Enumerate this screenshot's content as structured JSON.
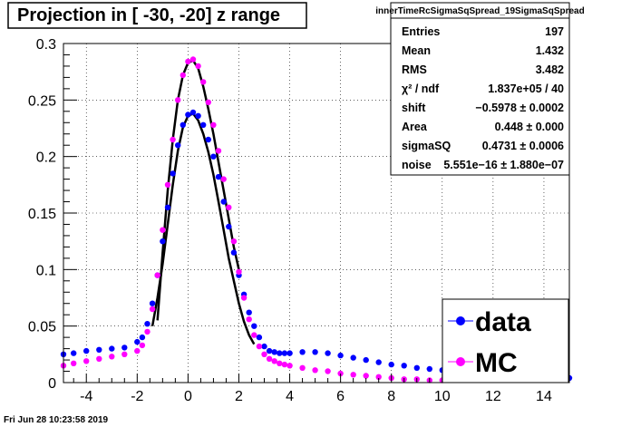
{
  "title": "Projection in [ -30, -20] z range",
  "timestamp": "Fri Jun 28 10:23:58 2019",
  "stats": {
    "name": "innerTimeRcSigmaSqSpread_19SigmaSqSpread",
    "rows": [
      {
        "label": "Entries",
        "value": "197"
      },
      {
        "label": "Mean",
        "value": "1.432"
      },
      {
        "label": "RMS",
        "value": "3.482"
      },
      {
        "label": "χ² / ndf",
        "value": "1.837e+05 / 40"
      },
      {
        "label": "shift",
        "value": "−0.5978 ± 0.0002"
      },
      {
        "label": "Area",
        "value": "0.448 ± 0.000"
      },
      {
        "label": "sigmaSQ",
        "value": "0.4731 ± 0.0006"
      },
      {
        "label": "noise",
        "value": "5.551e−16 ± 1.880e−07"
      }
    ]
  },
  "legend": [
    {
      "label": "data",
      "color": "#0000ff"
    },
    {
      "label": "MC",
      "color": "#ff00ff"
    }
  ],
  "chart_data": {
    "type": "scatter",
    "xlim": [
      -4.9,
      15.0
    ],
    "ylim": [
      0,
      0.3
    ],
    "grid": true,
    "x_ticks": [
      -4,
      -2,
      0,
      2,
      4,
      6,
      8,
      10,
      12,
      14
    ],
    "y_ticks": [
      0,
      0.05,
      0.1,
      0.15,
      0.2,
      0.25,
      0.3
    ],
    "y_tick_labels": [
      "0",
      "0.05",
      "0.1",
      "0.15",
      "0.2",
      "0.25",
      "0.3"
    ],
    "series": [
      {
        "name": "data",
        "color": "#0000ff",
        "x": [
          -4.9,
          -4.5,
          -4.0,
          -3.5,
          -3.0,
          -2.5,
          -2.0,
          -1.8,
          -1.6,
          -1.4,
          -1.2,
          -1.0,
          -0.8,
          -0.6,
          -0.4,
          -0.2,
          0.0,
          0.2,
          0.4,
          0.6,
          0.8,
          1.0,
          1.2,
          1.4,
          1.6,
          1.8,
          2.0,
          2.2,
          2.4,
          2.6,
          2.8,
          3.0,
          3.2,
          3.4,
          3.6,
          3.8,
          4.0,
          4.5,
          5.0,
          5.5,
          6.0,
          6.5,
          7.0,
          7.5,
          8.0,
          8.5,
          9.0,
          9.5,
          10.0,
          10.5,
          11.0,
          11.5,
          12.0,
          12.5,
          13.0,
          13.5,
          14.0,
          14.5,
          15.0
        ],
        "y": [
          0.025,
          0.026,
          0.028,
          0.029,
          0.03,
          0.031,
          0.036,
          0.04,
          0.052,
          0.07,
          0.095,
          0.125,
          0.155,
          0.185,
          0.21,
          0.228,
          0.237,
          0.239,
          0.236,
          0.228,
          0.215,
          0.2,
          0.182,
          0.16,
          0.138,
          0.115,
          0.095,
          0.078,
          0.062,
          0.05,
          0.04,
          0.032,
          0.028,
          0.027,
          0.026,
          0.026,
          0.026,
          0.027,
          0.027,
          0.026,
          0.024,
          0.022,
          0.02,
          0.018,
          0.016,
          0.015,
          0.013,
          0.012,
          0.011,
          0.01,
          0.009,
          0.008,
          0.007,
          0.007,
          0.006,
          0.006,
          0.005,
          0.005,
          0.004
        ]
      },
      {
        "name": "MC",
        "color": "#ff00ff",
        "x": [
          -4.9,
          -4.5,
          -4.0,
          -3.5,
          -3.0,
          -2.5,
          -2.0,
          -1.8,
          -1.6,
          -1.4,
          -1.2,
          -1.0,
          -0.8,
          -0.6,
          -0.4,
          -0.2,
          0.0,
          0.2,
          0.4,
          0.6,
          0.8,
          1.0,
          1.2,
          1.4,
          1.6,
          1.8,
          2.0,
          2.2,
          2.4,
          2.6,
          2.8,
          3.0,
          3.2,
          3.4,
          3.6,
          3.8,
          4.0,
          4.5,
          5.0,
          5.5,
          6.0,
          6.5,
          7.0,
          7.5,
          8.0,
          8.5,
          9.0,
          9.5,
          10.0
        ],
        "y": [
          0.015,
          0.017,
          0.019,
          0.021,
          0.023,
          0.025,
          0.028,
          0.033,
          0.045,
          0.065,
          0.095,
          0.135,
          0.175,
          0.215,
          0.25,
          0.272,
          0.284,
          0.286,
          0.28,
          0.266,
          0.248,
          0.228,
          0.205,
          0.18,
          0.155,
          0.125,
          0.098,
          0.075,
          0.056,
          0.042,
          0.032,
          0.025,
          0.021,
          0.019,
          0.017,
          0.016,
          0.015,
          0.013,
          0.011,
          0.01,
          0.008,
          0.007,
          0.006,
          0.005,
          0.004,
          0.003,
          0.003,
          0.002,
          0.002
        ]
      }
    ],
    "fits": [
      {
        "color": "#000000",
        "x": [
          -1.4,
          -1.2,
          -1.0,
          -0.8,
          -0.6,
          -0.4,
          -0.2,
          0.0,
          0.2,
          0.4,
          0.6,
          0.8,
          1.0,
          1.2,
          1.4,
          1.6,
          1.8,
          2.0,
          2.2,
          2.4,
          2.6
        ],
        "y": [
          0.05,
          0.075,
          0.105,
          0.14,
          0.175,
          0.205,
          0.226,
          0.236,
          0.238,
          0.232,
          0.22,
          0.204,
          0.184,
          0.16,
          0.135,
          0.11,
          0.09,
          0.07,
          0.054,
          0.042,
          0.034
        ]
      },
      {
        "color": "#000000",
        "x": [
          -1.2,
          -1.0,
          -0.8,
          -0.6,
          -0.4,
          -0.2,
          0.0,
          0.2,
          0.4,
          0.6,
          0.8,
          1.0,
          1.2,
          1.4,
          1.6,
          1.8,
          2.0
        ],
        "y": [
          0.055,
          0.115,
          0.17,
          0.215,
          0.25,
          0.272,
          0.283,
          0.285,
          0.278,
          0.262,
          0.242,
          0.22,
          0.195,
          0.17,
          0.145,
          0.12,
          0.1
        ]
      }
    ]
  }
}
